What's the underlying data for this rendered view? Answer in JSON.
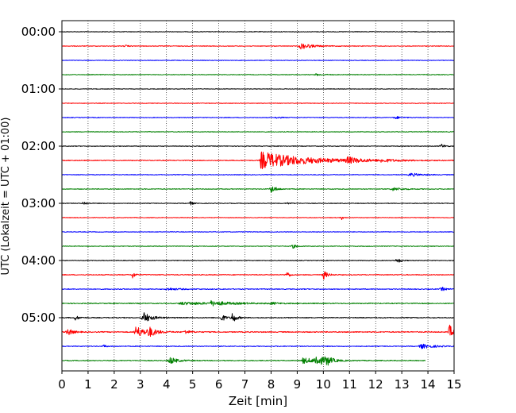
{
  "chart_data": {
    "type": "line",
    "title": "",
    "xlabel": "Zeit  [min]",
    "ylabel": "UTC (Lokalzeit = UTC + 01:00)",
    "xlim": [
      0,
      15
    ],
    "x_ticks": [
      "0",
      "1",
      "2",
      "3",
      "4",
      "5",
      "6",
      "7",
      "8",
      "9",
      "10",
      "11",
      "12",
      "13",
      "14",
      "15"
    ],
    "y_tick_labels": [
      "00:00",
      "01:00",
      "02:00",
      "03:00",
      "04:00",
      "05:00"
    ],
    "grid": "vertical dotted",
    "colors": [
      "#000000",
      "#ff0000",
      "#0000ff",
      "#008000"
    ],
    "trace_interval_min": 15,
    "traces": [
      {
        "start": "00:00",
        "color": "#000000",
        "noise": 0.35,
        "events": []
      },
      {
        "start": "00:15",
        "color": "#ff0000",
        "noise": 0.4,
        "events": [
          {
            "t": 2.4,
            "amp": 1.2,
            "dur": 0.35
          },
          {
            "t": 9.1,
            "amp": 4.2,
            "dur": 0.9
          }
        ]
      },
      {
        "start": "00:30",
        "color": "#0000ff",
        "noise": 0.35,
        "events": []
      },
      {
        "start": "00:45",
        "color": "#008000",
        "noise": 0.4,
        "events": [
          {
            "t": 9.7,
            "amp": 1.3,
            "dur": 0.6
          }
        ]
      },
      {
        "start": "01:00",
        "color": "#000000",
        "noise": 0.35,
        "events": []
      },
      {
        "start": "01:15",
        "color": "#ff0000",
        "noise": 0.35,
        "events": []
      },
      {
        "start": "01:30",
        "color": "#0000ff",
        "noise": 0.4,
        "events": [
          {
            "t": 8.2,
            "amp": 1.1,
            "dur": 0.4
          },
          {
            "t": 12.7,
            "amp": 1.8,
            "dur": 0.6
          }
        ]
      },
      {
        "start": "01:45",
        "color": "#008000",
        "noise": 0.35,
        "events": []
      },
      {
        "start": "02:00",
        "color": "#000000",
        "noise": 0.4,
        "events": [
          {
            "t": 14.5,
            "amp": 2.8,
            "dur": 0.3
          }
        ]
      },
      {
        "start": "02:15",
        "color": "#ff0000",
        "noise": 0.5,
        "events": [
          {
            "t": 7.6,
            "amp": 11.0,
            "dur": 3.5
          },
          {
            "t": 10.9,
            "amp": 3.5,
            "dur": 1.0
          },
          {
            "t": 12.2,
            "amp": 1.6,
            "dur": 1.0
          }
        ]
      },
      {
        "start": "02:30",
        "color": "#0000ff",
        "noise": 0.4,
        "events": [
          {
            "t": 13.3,
            "amp": 2.4,
            "dur": 0.8
          }
        ]
      },
      {
        "start": "02:45",
        "color": "#008000",
        "noise": 0.45,
        "events": [
          {
            "t": 8.0,
            "amp": 5.0,
            "dur": 0.4
          },
          {
            "t": 12.6,
            "amp": 2.2,
            "dur": 0.8
          }
        ]
      },
      {
        "start": "03:00",
        "color": "#000000",
        "noise": 0.4,
        "events": [
          {
            "t": 0.8,
            "amp": 2.2,
            "dur": 0.3
          },
          {
            "t": 4.9,
            "amp": 2.6,
            "dur": 0.2
          },
          {
            "t": 8.6,
            "amp": 1.2,
            "dur": 0.3
          }
        ]
      },
      {
        "start": "03:15",
        "color": "#ff0000",
        "noise": 0.35,
        "events": [
          {
            "t": 10.7,
            "amp": 2.5,
            "dur": 0.15
          }
        ]
      },
      {
        "start": "03:30",
        "color": "#0000ff",
        "noise": 0.35,
        "events": []
      },
      {
        "start": "03:45",
        "color": "#008000",
        "noise": 0.4,
        "events": [
          {
            "t": 8.8,
            "amp": 3.0,
            "dur": 0.3
          }
        ]
      },
      {
        "start": "04:00",
        "color": "#000000",
        "noise": 0.4,
        "events": [
          {
            "t": 12.8,
            "amp": 4.2,
            "dur": 0.3
          }
        ]
      },
      {
        "start": "04:15",
        "color": "#ff0000",
        "noise": 0.45,
        "events": [
          {
            "t": 2.7,
            "amp": 4.5,
            "dur": 0.2
          },
          {
            "t": 8.6,
            "amp": 5.0,
            "dur": 0.2
          },
          {
            "t": 10.0,
            "amp": 6.0,
            "dur": 0.3
          }
        ]
      },
      {
        "start": "04:30",
        "color": "#0000ff",
        "noise": 0.5,
        "events": [
          {
            "t": 4.0,
            "amp": 1.5,
            "dur": 1.0
          },
          {
            "t": 14.5,
            "amp": 3.0,
            "dur": 0.3
          }
        ]
      },
      {
        "start": "04:45",
        "color": "#008000",
        "noise": 0.55,
        "events": [
          {
            "t": 4.5,
            "amp": 1.6,
            "dur": 3.5
          },
          {
            "t": 5.7,
            "amp": 2.5,
            "dur": 1.2
          },
          {
            "t": 8.0,
            "amp": 1.4,
            "dur": 0.5
          }
        ]
      },
      {
        "start": "05:00",
        "color": "#000000",
        "noise": 0.55,
        "events": [
          {
            "t": 0.5,
            "amp": 3.0,
            "dur": 0.3
          },
          {
            "t": 3.1,
            "amp": 7.5,
            "dur": 0.6
          },
          {
            "t": 6.1,
            "amp": 5.0,
            "dur": 0.3
          },
          {
            "t": 6.5,
            "amp": 7.5,
            "dur": 0.3
          }
        ]
      },
      {
        "start": "05:15",
        "color": "#ff0000",
        "noise": 0.6,
        "events": [
          {
            "t": 0.2,
            "amp": 5.0,
            "dur": 0.4
          },
          {
            "t": 2.8,
            "amp": 8.0,
            "dur": 0.8
          },
          {
            "t": 3.3,
            "amp": 6.0,
            "dur": 0.5
          },
          {
            "t": 4.7,
            "amp": 2.5,
            "dur": 0.4
          },
          {
            "t": 14.8,
            "amp": 10.0,
            "dur": 0.4
          }
        ]
      },
      {
        "start": "05:30",
        "color": "#0000ff",
        "noise": 0.5,
        "events": [
          {
            "t": 1.6,
            "amp": 2.2,
            "dur": 0.2
          },
          {
            "t": 13.7,
            "amp": 3.0,
            "dur": 1.0
          }
        ]
      },
      {
        "start": "05:45",
        "color": "#008000",
        "noise": 0.5,
        "end": 13.9,
        "events": [
          {
            "t": 4.1,
            "amp": 5.0,
            "dur": 0.6
          },
          {
            "t": 9.2,
            "amp": 3.5,
            "dur": 1.3
          },
          {
            "t": 9.7,
            "amp": 7.5,
            "dur": 0.6
          },
          {
            "t": 10.1,
            "amp": 5.5,
            "dur": 0.4
          }
        ]
      }
    ]
  }
}
